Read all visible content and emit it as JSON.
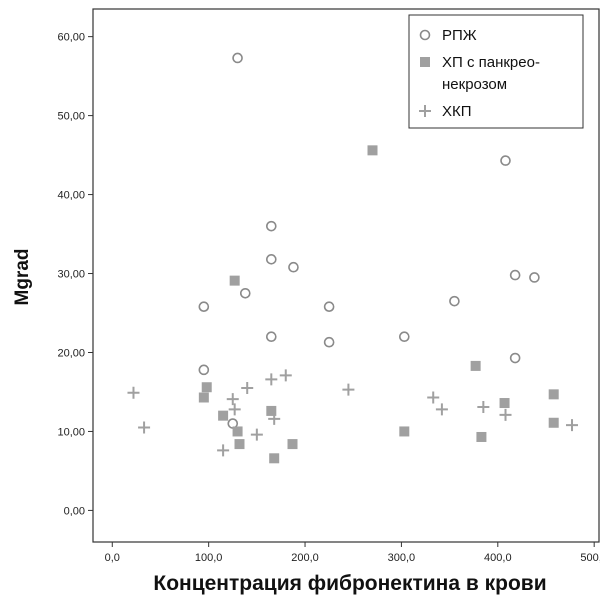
{
  "chart_data": {
    "type": "scatter",
    "xlabel": "Концентрация фибронектина в крови",
    "ylabel": "Mgrad",
    "xlim": [
      -20,
      505
    ],
    "ylim": [
      -4,
      63.5
    ],
    "xticks": [
      "0,0",
      "100,0",
      "200,0",
      "300,0",
      "400,0",
      "500,0"
    ],
    "yticks": [
      "0,00",
      "10,00",
      "20,00",
      "30,00",
      "40,00",
      "50,00",
      "60,00"
    ],
    "grid": false,
    "legend_position": "top-right",
    "series": [
      {
        "name": "РПЖ",
        "marker": "circle",
        "color": "#8a8a8a",
        "points": [
          [
            130,
            57.3
          ],
          [
            165,
            36.0
          ],
          [
            165,
            31.8
          ],
          [
            188,
            30.8
          ],
          [
            138,
            27.5
          ],
          [
            95,
            25.8
          ],
          [
            225,
            25.8
          ],
          [
            165,
            22.0
          ],
          [
            225,
            21.3
          ],
          [
            303,
            22.0
          ],
          [
            95,
            17.8
          ],
          [
            125,
            11.0
          ],
          [
            355,
            26.5
          ],
          [
            408,
            44.3
          ],
          [
            418,
            29.8
          ],
          [
            438,
            29.5
          ],
          [
            418,
            19.3
          ]
        ]
      },
      {
        "name": "ХП с панкрео-\nнекрозом",
        "label_lines": [
          "ХП с панкрео-",
          "некрозом"
        ],
        "marker": "square",
        "color": "#a0a0a0",
        "points": [
          [
            270,
            45.6
          ],
          [
            127,
            29.1
          ],
          [
            95,
            14.3
          ],
          [
            98,
            15.6
          ],
          [
            115,
            12.0
          ],
          [
            130,
            10.0
          ],
          [
            132,
            8.4
          ],
          [
            165,
            12.6
          ],
          [
            168,
            6.6
          ],
          [
            187,
            8.4
          ],
          [
            303,
            10.0
          ],
          [
            377,
            18.3
          ],
          [
            383,
            9.3
          ],
          [
            407,
            13.6
          ],
          [
            458,
            14.7
          ],
          [
            458,
            11.1
          ]
        ]
      },
      {
        "name": "ХКП",
        "marker": "plus",
        "color": "#a0a0a0",
        "points": [
          [
            22,
            14.9
          ],
          [
            33,
            10.5
          ],
          [
            115,
            7.6
          ],
          [
            125,
            14.1
          ],
          [
            127,
            12.8
          ],
          [
            140,
            15.5
          ],
          [
            150,
            9.6
          ],
          [
            165,
            16.6
          ],
          [
            168,
            11.6
          ],
          [
            180,
            17.1
          ],
          [
            245,
            15.3
          ],
          [
            333,
            14.3
          ],
          [
            342,
            12.8
          ],
          [
            385,
            13.1
          ],
          [
            408,
            12.1
          ],
          [
            477,
            10.8
          ]
        ]
      }
    ]
  }
}
